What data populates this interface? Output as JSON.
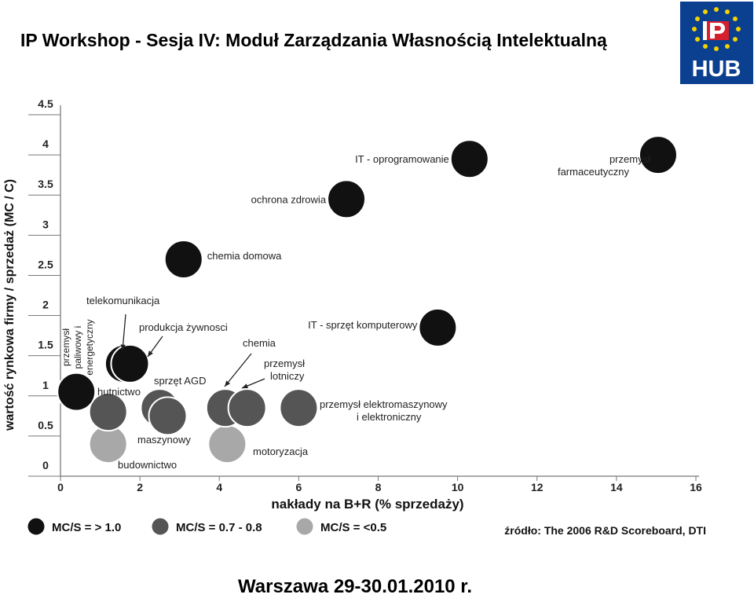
{
  "slide": {
    "title": "IP Workshop - Sesja IV: Moduł Zarządzania Własnością Intelektualną",
    "footer": "Warszawa 29-30.01.2010 r.",
    "logo_text": "IP HUB"
  },
  "chart_data": {
    "type": "scatter",
    "xlabel": "nakłady na B+R (% sprzedaży)",
    "ylabel": "wartość rynkowa firmy / sprzedaż (MC / C)",
    "xlim": [
      0,
      16
    ],
    "ylim": [
      0,
      4.5
    ],
    "x_ticks": [
      "0",
      "2",
      "4",
      "6",
      "8",
      "10",
      "12",
      "14",
      "16"
    ],
    "y_ticks": [
      "0",
      "0.5",
      "1",
      "1.5",
      "2",
      "2.5",
      "3",
      "3.5",
      "4",
      "4.5"
    ],
    "grid": false,
    "colors": {
      "high": "#111111",
      "mid": "#555555",
      "low": "#a8a8a8"
    },
    "legend": [
      {
        "label": "MC/S = > 1.0",
        "class": "high"
      },
      {
        "label": "MC/S = 0.7 - 0.8",
        "class": "mid"
      },
      {
        "label": "MC/S = <0.5",
        "class": "low"
      }
    ],
    "source": "źródło: The 2006 R&D Scoreboard, DTI",
    "points": [
      {
        "label": "IT - oprogramowanie",
        "x": 10.3,
        "y": 3.95,
        "class": "high"
      },
      {
        "label": "przemysł farmaceutyczny",
        "x": 15.05,
        "y": 4.0,
        "class": "high"
      },
      {
        "label": "ochrona zdrowia",
        "x": 7.2,
        "y": 3.45,
        "class": "high"
      },
      {
        "label": "chemia domowa",
        "x": 3.1,
        "y": 2.7,
        "class": "high"
      },
      {
        "label": "IT - sprzęt komputerowy",
        "x": 9.5,
        "y": 1.85,
        "class": "high"
      },
      {
        "label": "telekomunikacja",
        "x": 1.6,
        "y": 1.4,
        "class": "high"
      },
      {
        "label": "produkcja żywnosci",
        "x": 1.75,
        "y": 1.4,
        "class": "high"
      },
      {
        "label": "przemysł paliwowy i energetyczny",
        "x": 0.4,
        "y": 1.05,
        "class": "high"
      },
      {
        "label": "hutnictwo",
        "x": 1.2,
        "y": 0.8,
        "class": "mid"
      },
      {
        "label": "sprzęt AGD",
        "x": 2.5,
        "y": 0.85,
        "class": "mid"
      },
      {
        "label": "maszynowy",
        "x": 2.7,
        "y": 0.75,
        "class": "mid"
      },
      {
        "label": "chemia",
        "x": 4.15,
        "y": 0.85,
        "class": "mid"
      },
      {
        "label": "przemysł lotniczy",
        "x": 4.7,
        "y": 0.85,
        "class": "mid"
      },
      {
        "label": "przemysł elektromaszynowy i elektroniczny",
        "x": 6.0,
        "y": 0.85,
        "class": "mid"
      },
      {
        "label": "budownictwo",
        "x": 1.2,
        "y": 0.4,
        "class": "low"
      },
      {
        "label": "motoryzacja",
        "x": 4.2,
        "y": 0.4,
        "class": "low"
      }
    ]
  }
}
